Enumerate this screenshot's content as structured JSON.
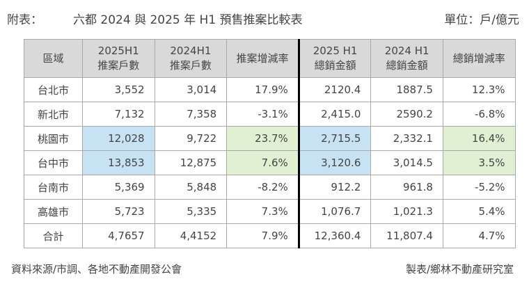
{
  "header": {
    "prefix": "附表：",
    "title": "六都  2024 與 2025 年  H1 預售推案比較表",
    "unit": "單位：戶/億元"
  },
  "table": {
    "columns": [
      [
        "區域"
      ],
      [
        "2025H1",
        "推案戶數"
      ],
      [
        "2024H1",
        "推案戶數"
      ],
      [
        "推案增減率"
      ],
      [
        "2025 H1",
        "總銷金額"
      ],
      [
        "2024 H1",
        "總銷金額"
      ],
      [
        "總銷增減率"
      ]
    ],
    "rows": [
      [
        "台北市",
        "3,552",
        "3,014",
        "17.9%",
        "2120.4",
        "1887.5",
        "12.3%"
      ],
      [
        "新北市",
        "7,132",
        "7,358",
        "-3.1%",
        "2,415.0",
        "2590.2",
        "-6.8%"
      ],
      [
        "桃園市",
        "12,028",
        "9,722",
        "23.7%",
        "2,715.5",
        "2,332.1",
        "16.4%"
      ],
      [
        "台中市",
        "13,853",
        "12,875",
        "7.6%",
        "3,120.6",
        "3,014.5",
        "3.5%"
      ],
      [
        "台南市",
        "5,369",
        "5,848",
        "-8.2%",
        "912.2",
        "961.8",
        "-5.2%"
      ],
      [
        "高雄市",
        "5,723",
        "5,335",
        "7.3%",
        "1,076.7",
        "1,021.3",
        "5.4%"
      ],
      [
        "合計",
        "4,7657",
        "4,4152",
        "7.9%",
        "12,360.4",
        "11,807.4",
        "4.7%"
      ]
    ],
    "highlight_colors": {
      "blue": "#c6e2f3",
      "green": "#dff0d3"
    }
  },
  "footer": {
    "source": "資料來源/市調、各地不動產開發公會",
    "credit": "製表/鄉林不動產研究室"
  }
}
